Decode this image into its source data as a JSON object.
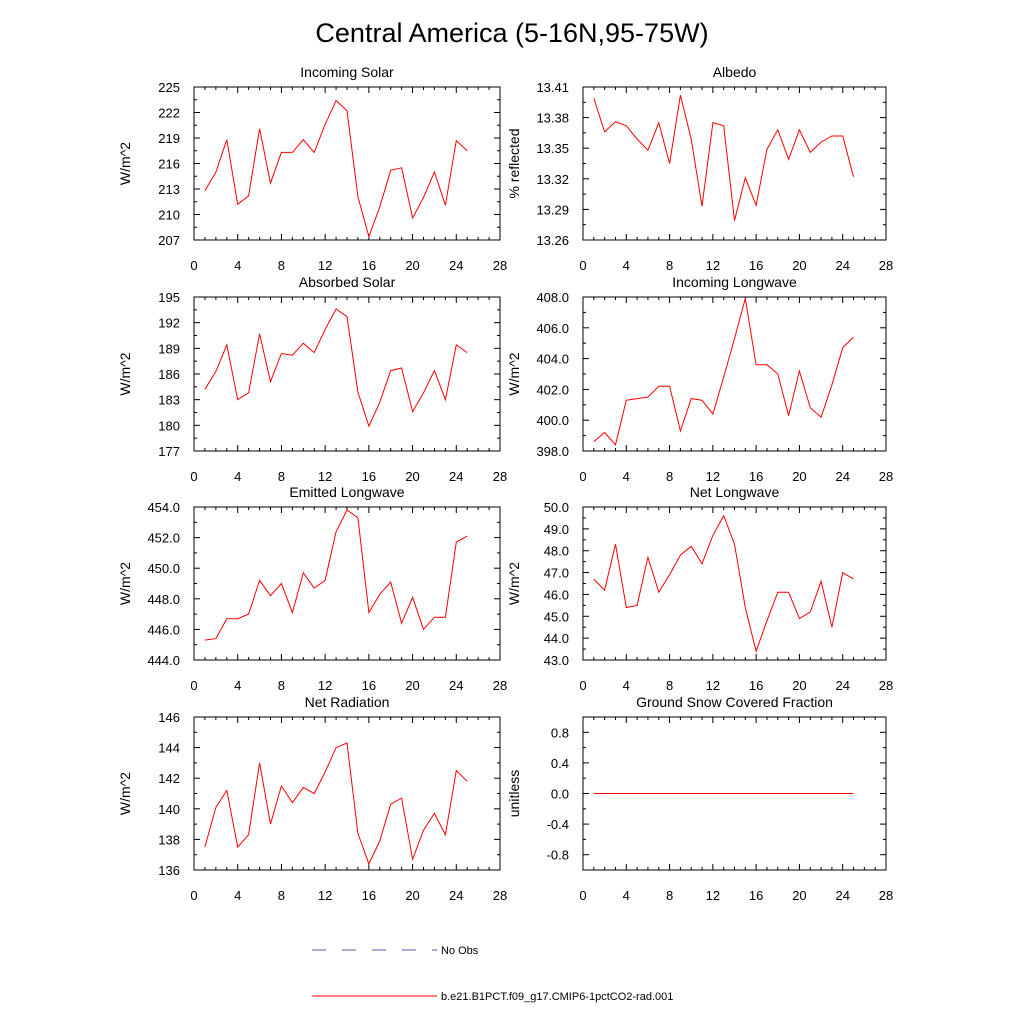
{
  "title": "Central America (5-16N,95-75W)",
  "legend": {
    "items": [
      {
        "label": "No Obs",
        "color": "#5a5aaf",
        "style": "dashed"
      },
      {
        "label": "b.e21.B1PCT.f09_g17.CMIP6-1pctCO2-rad.001",
        "color": "#ff0000",
        "style": "solid"
      }
    ]
  },
  "chart_data": [
    {
      "type": "line",
      "title": "Incoming Solar",
      "xlabel": "",
      "ylabel": "W/m^2",
      "xlim": [
        0,
        28
      ],
      "ylim": [
        207,
        225
      ],
      "xticks": [
        "0",
        "4",
        "8",
        "12",
        "16",
        "20",
        "24",
        "28"
      ],
      "yticks": [
        "207",
        "210",
        "213",
        "216",
        "219",
        "222",
        "225"
      ],
      "series": [
        {
          "color": "#ff0000",
          "x": [
            1,
            2,
            3,
            4,
            5,
            6,
            7,
            8,
            9,
            10,
            11,
            12,
            13,
            14,
            15,
            16,
            17,
            18,
            19,
            20,
            21,
            22,
            23,
            24,
            25
          ],
          "y": [
            212.8,
            215.0,
            218.8,
            211.2,
            212.2,
            220.1,
            213.7,
            217.3,
            217.3,
            218.8,
            217.3,
            220.6,
            223.4,
            222.2,
            212.1,
            207.4,
            210.9,
            215.2,
            215.5,
            209.6,
            212.0,
            215.0,
            211.1,
            218.7,
            217.5
          ]
        }
      ]
    },
    {
      "type": "line",
      "title": "Albedo",
      "xlabel": "",
      "ylabel": "% reflected",
      "xlim": [
        0,
        28
      ],
      "ylim": [
        13.26,
        13.41
      ],
      "xticks": [
        "0",
        "4",
        "8",
        "12",
        "16",
        "20",
        "24",
        "28"
      ],
      "yticks": [
        "13.26",
        "13.29",
        "13.32",
        "13.35",
        "13.38",
        "13.41"
      ],
      "series": [
        {
          "color": "#ff0000",
          "x": [
            1,
            2,
            3,
            4,
            5,
            6,
            7,
            8,
            9,
            10,
            11,
            12,
            13,
            14,
            15,
            16,
            17,
            18,
            19,
            20,
            21,
            22,
            23,
            24,
            25
          ],
          "y": [
            13.399,
            13.366,
            13.376,
            13.372,
            13.359,
            13.348,
            13.375,
            13.335,
            13.402,
            13.359,
            13.293,
            13.375,
            13.372,
            13.279,
            13.321,
            13.294,
            13.349,
            13.368,
            13.339,
            13.368,
            13.346,
            13.356,
            13.362,
            13.362,
            13.322
          ]
        }
      ]
    },
    {
      "type": "line",
      "title": "Absorbed Solar",
      "xlabel": "",
      "ylabel": "W/m^2",
      "xlim": [
        0,
        28
      ],
      "ylim": [
        177,
        195
      ],
      "xticks": [
        "0",
        "4",
        "8",
        "12",
        "16",
        "20",
        "24",
        "28"
      ],
      "yticks": [
        "177",
        "180",
        "183",
        "186",
        "189",
        "192",
        "195"
      ],
      "series": [
        {
          "color": "#ff0000",
          "x": [
            1,
            2,
            3,
            4,
            5,
            6,
            7,
            8,
            9,
            10,
            11,
            12,
            13,
            14,
            15,
            16,
            17,
            18,
            19,
            20,
            21,
            22,
            23,
            24,
            25
          ],
          "y": [
            184.2,
            186.3,
            189.4,
            183.0,
            183.8,
            190.7,
            185.1,
            188.4,
            188.2,
            189.6,
            188.5,
            191.2,
            193.6,
            192.7,
            183.9,
            179.9,
            182.7,
            186.4,
            186.7,
            181.6,
            183.8,
            186.4,
            183.0,
            189.4,
            188.5
          ]
        }
      ]
    },
    {
      "type": "line",
      "title": "Incoming Longwave",
      "xlabel": "",
      "ylabel": "W/m^2",
      "xlim": [
        0,
        28
      ],
      "ylim": [
        398.0,
        408.0
      ],
      "xticks": [
        "0",
        "4",
        "8",
        "12",
        "16",
        "20",
        "24",
        "28"
      ],
      "yticks": [
        "398.0",
        "400.0",
        "402.0",
        "404.0",
        "406.0",
        "408.0"
      ],
      "series": [
        {
          "color": "#ff0000",
          "x": [
            1,
            2,
            3,
            4,
            5,
            6,
            7,
            8,
            9,
            10,
            11,
            12,
            13,
            14,
            15,
            16,
            17,
            18,
            19,
            20,
            21,
            22,
            23,
            24,
            25
          ],
          "y": [
            398.6,
            399.2,
            398.4,
            401.3,
            401.4,
            401.5,
            402.2,
            402.2,
            399.3,
            401.4,
            401.3,
            400.4,
            402.8,
            405.3,
            407.9,
            403.6,
            403.6,
            403.0,
            400.3,
            403.2,
            400.8,
            400.2,
            402.3,
            404.7,
            405.4
          ]
        }
      ]
    },
    {
      "type": "line",
      "title": "Emitted Longwave",
      "xlabel": "",
      "ylabel": "W/m^2",
      "xlim": [
        0,
        28
      ],
      "ylim": [
        444.0,
        454.0
      ],
      "xticks": [
        "0",
        "4",
        "8",
        "12",
        "16",
        "20",
        "24",
        "28"
      ],
      "yticks": [
        "444.0",
        "446.0",
        "448.0",
        "450.0",
        "452.0",
        "454.0"
      ],
      "series": [
        {
          "color": "#ff0000",
          "x": [
            1,
            2,
            3,
            4,
            5,
            6,
            7,
            8,
            9,
            10,
            11,
            12,
            13,
            14,
            15,
            16,
            17,
            18,
            19,
            20,
            21,
            22,
            23,
            24,
            25
          ],
          "y": [
            445.3,
            445.4,
            446.7,
            446.7,
            447.0,
            449.2,
            448.2,
            449.0,
            447.1,
            449.7,
            448.7,
            449.2,
            452.4,
            453.8,
            453.3,
            447.1,
            448.3,
            449.1,
            446.4,
            448.1,
            446.0,
            446.8,
            446.8,
            451.7,
            452.1
          ]
        }
      ]
    },
    {
      "type": "line",
      "title": "Net Longwave",
      "xlabel": "",
      "ylabel": "W/m^2",
      "xlim": [
        0,
        28
      ],
      "ylim": [
        43.0,
        50.0
      ],
      "xticks": [
        "0",
        "4",
        "8",
        "12",
        "16",
        "20",
        "24",
        "28"
      ],
      "yticks": [
        "43.0",
        "44.0",
        "45.0",
        "46.0",
        "47.0",
        "48.0",
        "49.0",
        "50.0"
      ],
      "series": [
        {
          "color": "#ff0000",
          "x": [
            1,
            2,
            3,
            4,
            5,
            6,
            7,
            8,
            9,
            10,
            11,
            12,
            13,
            14,
            15,
            16,
            17,
            18,
            19,
            20,
            21,
            22,
            23,
            24,
            25
          ],
          "y": [
            46.7,
            46.2,
            48.3,
            45.4,
            45.5,
            47.7,
            46.1,
            46.9,
            47.8,
            48.2,
            47.4,
            48.7,
            49.6,
            48.3,
            45.4,
            43.4,
            44.8,
            46.1,
            46.1,
            44.9,
            45.2,
            46.6,
            44.5,
            47.0,
            46.7
          ]
        }
      ]
    },
    {
      "type": "line",
      "title": "Net Radiation",
      "xlabel": "",
      "ylabel": "W/m^2",
      "xlim": [
        0,
        28
      ],
      "ylim": [
        136,
        146
      ],
      "xticks": [
        "0",
        "4",
        "8",
        "12",
        "16",
        "20",
        "24",
        "28"
      ],
      "yticks": [
        "136",
        "138",
        "140",
        "142",
        "144",
        "146"
      ],
      "series": [
        {
          "color": "#ff0000",
          "x": [
            1,
            2,
            3,
            4,
            5,
            6,
            7,
            8,
            9,
            10,
            11,
            12,
            13,
            14,
            15,
            16,
            17,
            18,
            19,
            20,
            21,
            22,
            23,
            24,
            25
          ],
          "y": [
            137.5,
            140.1,
            141.2,
            137.5,
            138.3,
            143.0,
            139.0,
            141.5,
            140.4,
            141.4,
            141.0,
            142.4,
            144.0,
            144.3,
            138.4,
            136.4,
            137.9,
            140.3,
            140.7,
            136.7,
            138.6,
            139.7,
            138.3,
            142.5,
            141.8
          ]
        }
      ]
    },
    {
      "type": "line",
      "title": "Ground Snow Covered Fraction",
      "xlabel": "",
      "ylabel": "unitless",
      "xlim": [
        0,
        28
      ],
      "ylim": [
        -1.0,
        1.0
      ],
      "xticks": [
        "0",
        "4",
        "8",
        "12",
        "16",
        "20",
        "24",
        "28"
      ],
      "yticks": [
        "-0.8",
        "-0.4",
        "0.0",
        "0.4",
        "0.8"
      ],
      "series": [
        {
          "color": "#ff0000",
          "x": [
            1,
            2,
            3,
            4,
            5,
            6,
            7,
            8,
            9,
            10,
            11,
            12,
            13,
            14,
            15,
            16,
            17,
            18,
            19,
            20,
            21,
            22,
            23,
            24,
            25
          ],
          "y": [
            0,
            0,
            0,
            0,
            0,
            0,
            0,
            0,
            0,
            0,
            0,
            0,
            0,
            0,
            0,
            0,
            0,
            0,
            0,
            0,
            0,
            0,
            0,
            0,
            0
          ]
        }
      ]
    }
  ]
}
